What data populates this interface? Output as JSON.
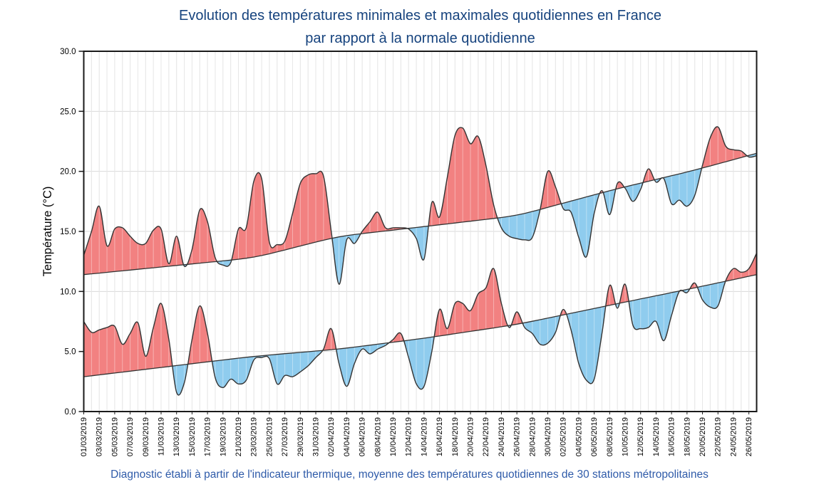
{
  "title": {
    "line1": "Evolution des températures minimales et maximales quotidiennes en France",
    "line2": "par rapport à la normale quotidienne",
    "color": "#16437E"
  },
  "caption": {
    "text": "Diagnostic établi à partir de l'indicateur thermique, moyenne des températures quotidiennes de 30 stations métropolitaines",
    "color": "#2F5BA9"
  },
  "chart_data": {
    "type": "area",
    "xlabel": "",
    "ylabel": "Température (°C)",
    "ylim": [
      0.0,
      30.0
    ],
    "ytick_step": 5,
    "ytick_labels": [
      "0.0",
      "5.0",
      "10.0",
      "15.0",
      "20.0",
      "25.0",
      "30.0"
    ],
    "grid": "on",
    "legend": "none",
    "x_tick_label_every_days": 2,
    "dates": [
      "01/03/2019",
      "02/03/2019",
      "03/03/2019",
      "04/03/2019",
      "05/03/2019",
      "06/03/2019",
      "07/03/2019",
      "08/03/2019",
      "09/03/2019",
      "10/03/2019",
      "11/03/2019",
      "12/03/2019",
      "13/03/2019",
      "14/03/2019",
      "15/03/2019",
      "16/03/2019",
      "17/03/2019",
      "18/03/2019",
      "19/03/2019",
      "20/03/2019",
      "21/03/2019",
      "22/03/2019",
      "23/03/2019",
      "24/03/2019",
      "25/03/2019",
      "26/03/2019",
      "27/03/2019",
      "28/03/2019",
      "29/03/2019",
      "30/03/2019",
      "31/03/2019",
      "01/04/2019",
      "02/04/2019",
      "03/04/2019",
      "04/04/2019",
      "05/04/2019",
      "06/04/2019",
      "07/04/2019",
      "08/04/2019",
      "09/04/2019",
      "10/04/2019",
      "11/04/2019",
      "12/04/2019",
      "13/04/2019",
      "14/04/2019",
      "15/04/2019",
      "16/04/2019",
      "17/04/2019",
      "18/04/2019",
      "19/04/2019",
      "20/04/2019",
      "21/04/2019",
      "22/04/2019",
      "23/04/2019",
      "24/04/2019",
      "25/04/2019",
      "26/04/2019",
      "27/04/2019",
      "28/04/2019",
      "29/04/2019",
      "30/04/2019",
      "01/05/2019",
      "02/05/2019",
      "03/05/2019",
      "04/05/2019",
      "05/05/2019",
      "06/05/2019",
      "07/05/2019",
      "08/05/2019",
      "09/05/2019",
      "10/05/2019",
      "11/05/2019",
      "12/05/2019",
      "13/05/2019",
      "14/05/2019",
      "15/05/2019",
      "16/05/2019",
      "17/05/2019",
      "18/05/2019",
      "19/05/2019",
      "20/05/2019",
      "21/05/2019",
      "22/05/2019",
      "23/05/2019",
      "24/05/2019",
      "25/05/2019",
      "26/05/2019",
      "27/05/2019"
    ],
    "series": [
      {
        "name": "temperature_maximale_observee",
        "type": "curve",
        "values": [
          13.0,
          15.0,
          17.1,
          13.8,
          15.2,
          15.3,
          14.6,
          14.0,
          14.0,
          15.1,
          15.2,
          12.3,
          14.6,
          12.1,
          13.5,
          16.8,
          15.8,
          12.8,
          12.2,
          12.4,
          15.2,
          15.3,
          19.2,
          19.4,
          14.1,
          13.9,
          14.2,
          16.5,
          19.0,
          19.7,
          19.8,
          19.6,
          15.0,
          10.6,
          14.3,
          14.0,
          15.0,
          15.8,
          16.6,
          15.3,
          15.3,
          15.3,
          15.2,
          14.4,
          12.7,
          17.4,
          16.2,
          19.5,
          23.0,
          23.6,
          22.3,
          22.9,
          20.5,
          17.2,
          15.3,
          14.6,
          14.4,
          14.3,
          14.5,
          16.8,
          20.0,
          18.7,
          16.9,
          16.6,
          14.5,
          12.9,
          16.5,
          18.4,
          16.4,
          19.0,
          18.6,
          17.5,
          18.5,
          20.2,
          19.1,
          19.4,
          17.3,
          17.6,
          17.1,
          18.0,
          20.5,
          22.8,
          23.7,
          22.1,
          21.8,
          21.7,
          21.2,
          21.3
        ]
      },
      {
        "name": "normale_temperature_maximale",
        "type": "smooth_anchors",
        "anchors": [
          [
            0,
            11.4
          ],
          [
            22,
            12.8
          ],
          [
            33,
            14.6
          ],
          [
            44,
            15.4
          ],
          [
            56,
            16.3
          ],
          [
            68,
            18.4
          ],
          [
            79,
            20.1
          ],
          [
            87,
            21.5
          ]
        ]
      },
      {
        "name": "temperature_minimale_observee",
        "type": "curve",
        "values": [
          7.5,
          6.6,
          6.8,
          7.0,
          7.1,
          5.6,
          6.5,
          7.4,
          4.6,
          7.0,
          9.0,
          6.0,
          1.6,
          2.4,
          6.0,
          8.8,
          6.5,
          2.8,
          2.0,
          2.7,
          2.3,
          2.6,
          4.3,
          4.5,
          4.4,
          2.3,
          3.0,
          2.9,
          3.3,
          3.8,
          4.5,
          5.2,
          6.9,
          4.0,
          2.1,
          4.0,
          5.2,
          4.8,
          5.2,
          5.5,
          6.0,
          6.5,
          4.5,
          2.3,
          2.1,
          5.0,
          8.5,
          6.9,
          9.0,
          9.0,
          8.4,
          9.8,
          10.3,
          11.9,
          9.0,
          7.0,
          8.3,
          7.0,
          6.5,
          5.6,
          5.7,
          6.6,
          8.5,
          6.8,
          4.0,
          2.6,
          2.7,
          6.5,
          10.5,
          8.6,
          10.6,
          7.2,
          6.9,
          7.0,
          7.5,
          5.9,
          8.0,
          10.0,
          9.9,
          10.7,
          9.3,
          8.7,
          8.8,
          10.9,
          11.9,
          11.6,
          11.9,
          13.2
        ]
      },
      {
        "name": "normale_temperature_minimale",
        "type": "smooth_anchors",
        "anchors": [
          [
            0,
            2.9
          ],
          [
            22,
            4.6
          ],
          [
            33,
            5.2
          ],
          [
            44,
            6.1
          ],
          [
            56,
            7.25
          ],
          [
            68,
            8.85
          ],
          [
            79,
            10.3
          ],
          [
            87,
            11.4
          ]
        ]
      }
    ],
    "colors": {
      "above_normal_fill": "#F28181",
      "below_normal_fill": "#8FCCEE",
      "curve_stroke": "#333333",
      "normal_stroke": "#333333",
      "grid": "#D9D9D9",
      "frame": "#1A1A1A",
      "tick_text": "#000000"
    }
  }
}
